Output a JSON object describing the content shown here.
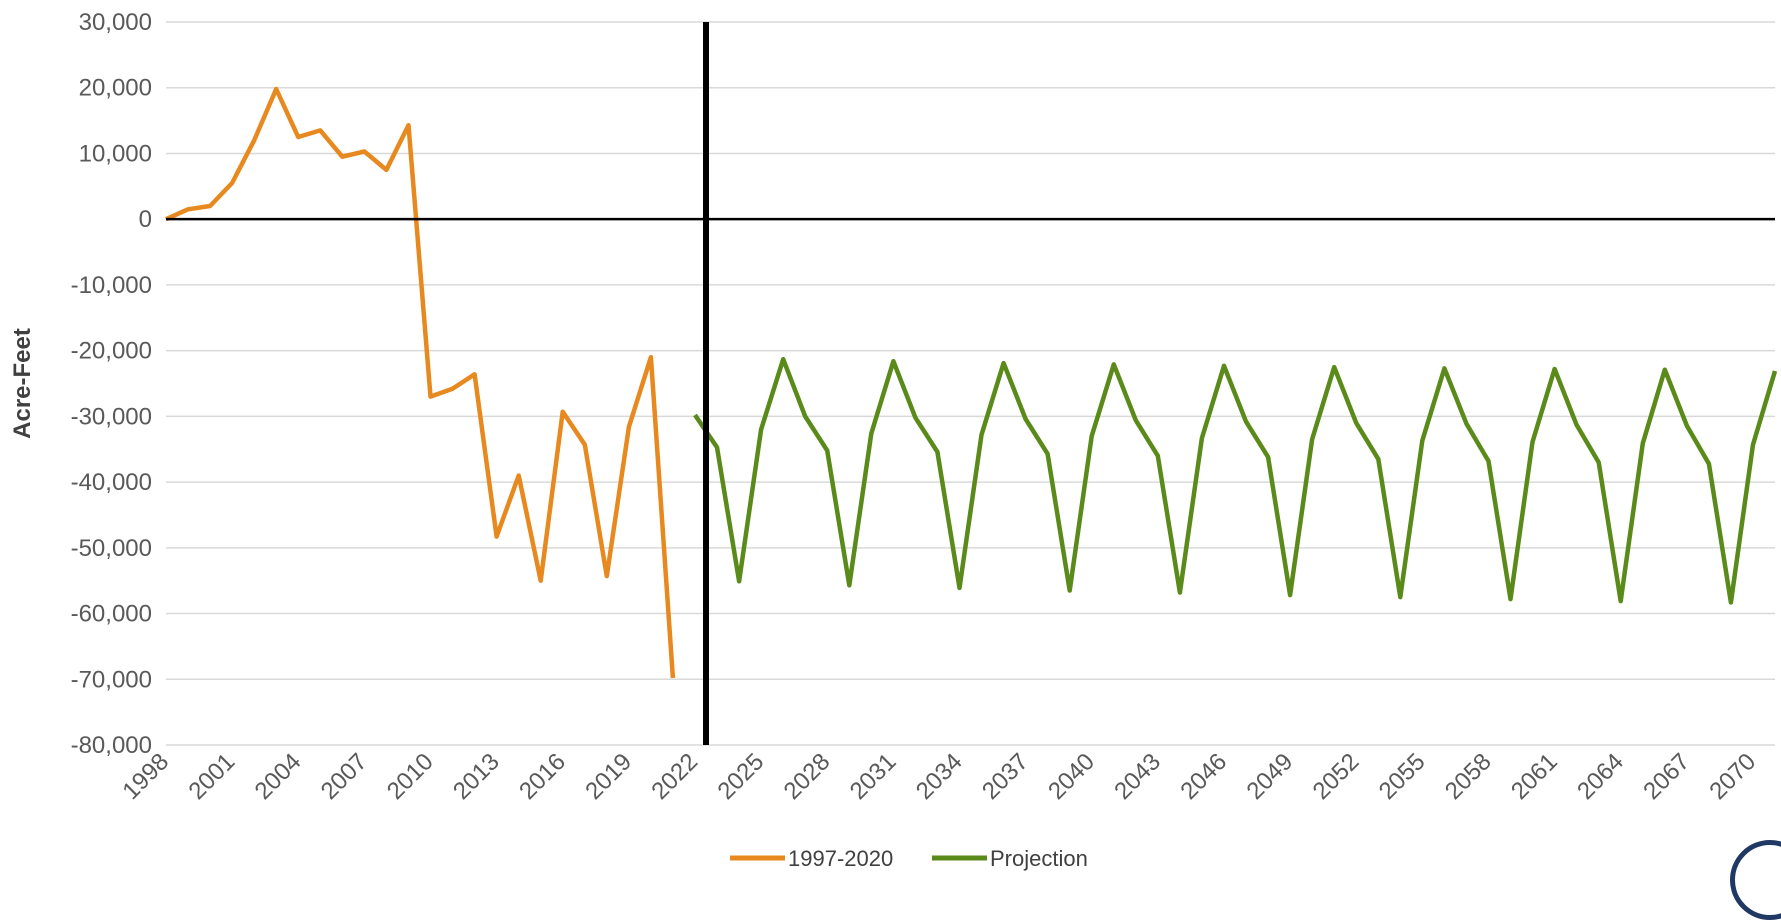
{
  "chart_data": {
    "type": "line",
    "title": "",
    "xlabel": "",
    "ylabel": "Acre-Feet",
    "ylim": [
      -80000,
      30000
    ],
    "y_ticks": [
      "30,000",
      "20,000",
      "10,000",
      "0",
      "-10,000",
      "-20,000",
      "-30,000",
      "-40,000",
      "-50,000",
      "-60,000",
      "-70,000",
      "-80,000"
    ],
    "x_ticks": [
      1998,
      2001,
      2004,
      2007,
      2010,
      2013,
      2016,
      2019,
      2022,
      2025,
      2028,
      2031,
      2034,
      2037,
      2040,
      2043,
      2046,
      2049,
      2052,
      2055,
      2058,
      2061,
      2064,
      2067,
      2070
    ],
    "xlim": [
      1998,
      2071
    ],
    "grid": true,
    "legend_position": "bottom",
    "divider_year": 2022.5,
    "series": [
      {
        "name": "1997-2020",
        "color": "#e8891f",
        "x": [
          1998,
          1999,
          2000,
          2001,
          2002,
          2003,
          2004,
          2005,
          2006,
          2007,
          2008,
          2009,
          2010,
          2011,
          2012,
          2013,
          2014,
          2015,
          2016,
          2017,
          2018,
          2019,
          2020,
          2021
        ],
        "values": [
          0,
          1500,
          2000,
          5500,
          12000,
          19800,
          12500,
          13500,
          9500,
          10300,
          7500,
          14300,
          -27000,
          -25800,
          -23600,
          -48300,
          -39000,
          -55000,
          -29300,
          -34300,
          -54300,
          -31600,
          -21000,
          -69800
        ]
      },
      {
        "name": "Projection",
        "color": "#5a8a1a",
        "x": [
          2022,
          2023,
          2024,
          2025,
          2026,
          2027,
          2028,
          2029,
          2030,
          2031,
          2032,
          2033,
          2034,
          2035,
          2036,
          2037,
          2038,
          2039,
          2040,
          2041,
          2042,
          2043,
          2044,
          2045,
          2046,
          2047,
          2048,
          2049,
          2050,
          2051,
          2052,
          2053,
          2054,
          2055,
          2056,
          2057,
          2058,
          2059,
          2060,
          2061,
          2062,
          2063,
          2064,
          2065,
          2066,
          2067,
          2068,
          2069,
          2070,
          2071
        ],
        "values": [
          -29800,
          -34700,
          -55100,
          -32000,
          -21300,
          -30000,
          -35200,
          -55700,
          -32600,
          -21600,
          -30200,
          -35400,
          -56100,
          -32800,
          -21900,
          -30400,
          -35700,
          -56500,
          -33000,
          -22100,
          -30600,
          -36000,
          -56800,
          -33300,
          -22300,
          -30800,
          -36200,
          -57200,
          -33500,
          -22500,
          -31000,
          -36500,
          -57500,
          -33700,
          -22700,
          -31100,
          -36800,
          -57800,
          -33900,
          -22800,
          -31300,
          -37000,
          -58100,
          -34100,
          -22900,
          -31400,
          -37200,
          -58300,
          -34300,
          -23100
        ]
      }
    ]
  }
}
